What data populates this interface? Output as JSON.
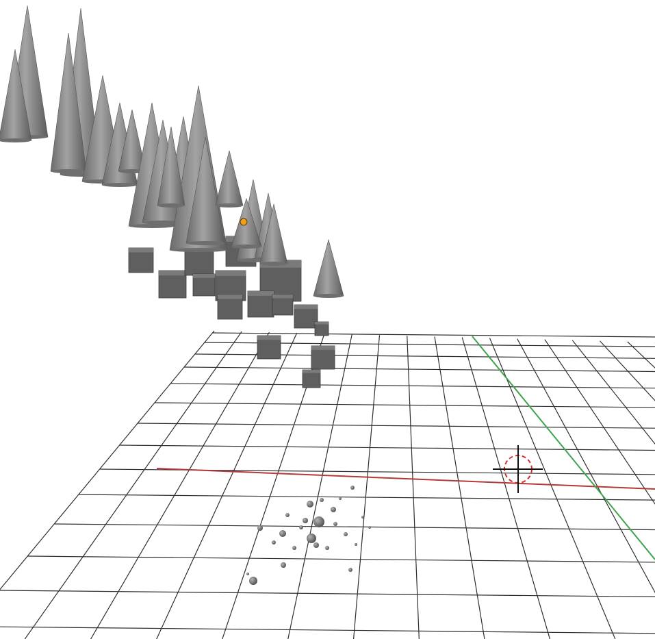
{
  "viewport": {
    "background": "#ffffff",
    "view": "3d-perspective"
  },
  "grid": {
    "line_color": "#2e2e2e",
    "x_axis_color": "#b33a3a",
    "y_axis_color": "#3fa34d"
  },
  "objects": {
    "cone_color": "#808080",
    "cube_color": "#5f5f5f",
    "particle_color": "#7a7a7a",
    "origin_color": "#f0a020"
  },
  "cursor": {
    "ring_color": "#d03030",
    "cross_color": "#111111"
  }
}
